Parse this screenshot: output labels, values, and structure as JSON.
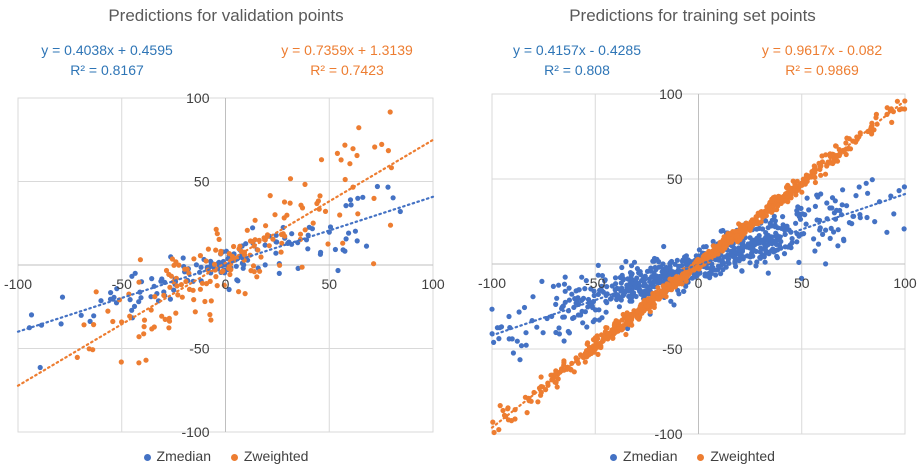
{
  "chart_data": [
    {
      "type": "scatter",
      "title": "Predictions for validation points",
      "xlim": [
        -100,
        100
      ],
      "ylim": [
        -100,
        100
      ],
      "x_ticks": [
        "-100",
        "-50",
        "0",
        "50",
        "100"
      ],
      "y_ticks": [
        "100",
        "50",
        "-50",
        "-100"
      ],
      "grid": true,
      "legend": "bottom",
      "series": [
        {
          "name": "Zmedian",
          "color": "#4472C4",
          "trendline": {
            "slope": 0.4038,
            "intercept": 0.4595,
            "equation": "y = 0.4038x + 0.4595",
            "r2": "R² = 0.8167"
          },
          "n_points": 150,
          "x_range": [
            -98,
            88
          ],
          "noise": 9
        },
        {
          "name": "Zweighted",
          "color": "#ED7D31",
          "trendline": {
            "slope": 0.7359,
            "intercept": 1.3139,
            "equation": "y = 0.7359x + 1.3139",
            "r2": "R² = 0.7423"
          },
          "n_points": 170,
          "x_range": [
            -90,
            80
          ],
          "noise": 16
        }
      ]
    },
    {
      "type": "scatter",
      "title": "Predictions for training set points",
      "xlim": [
        -100,
        100
      ],
      "ylim": [
        -100,
        100
      ],
      "x_ticks": [
        "-100",
        "-50",
        "0",
        "50",
        "100"
      ],
      "y_ticks": [
        "100",
        "50",
        "-50",
        "-100"
      ],
      "grid": true,
      "legend": "bottom",
      "series": [
        {
          "name": "Zmedian",
          "color": "#4472C4",
          "trendline": {
            "slope": 0.4157,
            "intercept": -0.4285,
            "equation": "y = 0.4157x - 0.4285",
            "r2": "R² = 0.808"
          },
          "n_points": 700,
          "x_range": [
            -100,
            100
          ],
          "noise": 8
        },
        {
          "name": "Zweighted",
          "color": "#ED7D31",
          "trendline": {
            "slope": 0.9617,
            "intercept": -0.082,
            "equation": "y = 0.9617x - 0.082",
            "r2": "R² = 0.9869"
          },
          "n_points": 800,
          "x_range": [
            -100,
            100
          ],
          "noise": 2.5
        }
      ]
    }
  ]
}
